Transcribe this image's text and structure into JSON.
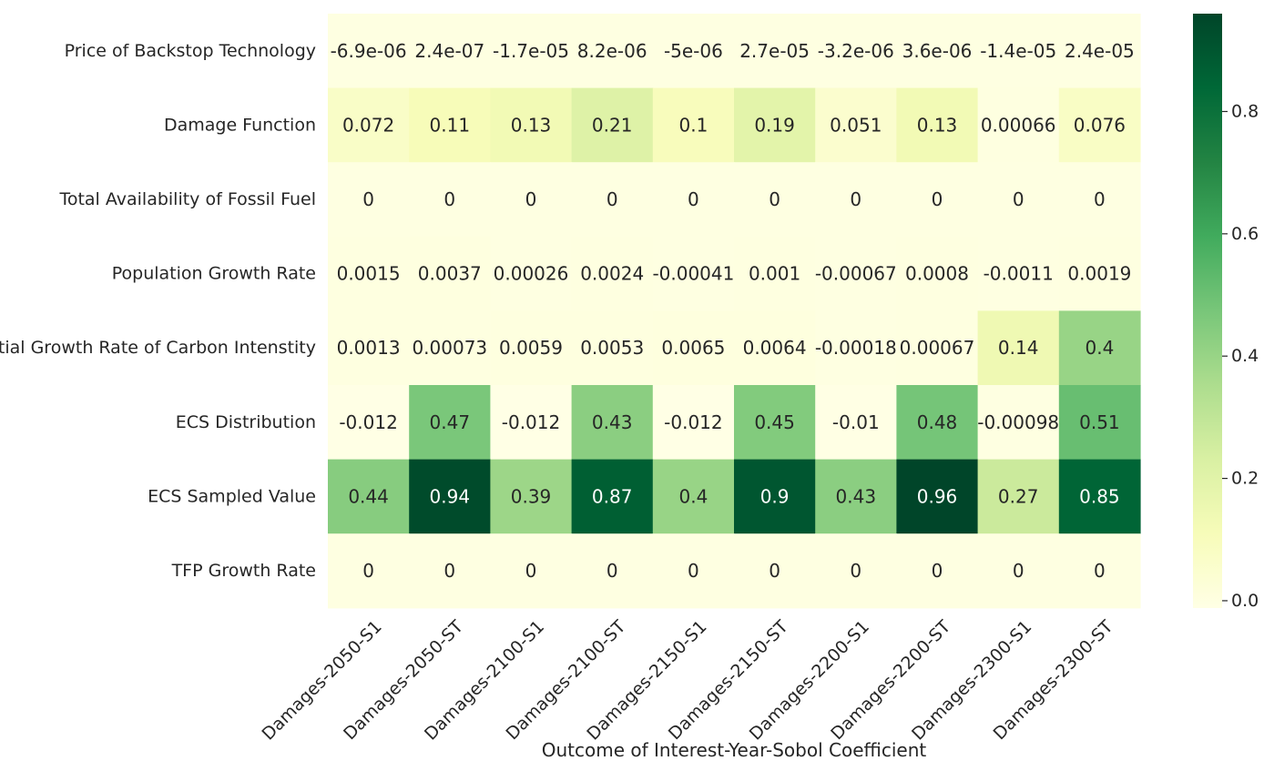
{
  "chart_data": {
    "type": "heatmap",
    "xlabel": "Outcome of Interest-Year-Sobol Coefficient",
    "ylabel": "",
    "x_categories": [
      "Damages-2050-S1",
      "Damages-2050-ST",
      "Damages-2100-S1",
      "Damages-2100-ST",
      "Damages-2150-S1",
      "Damages-2150-ST",
      "Damages-2200-S1",
      "Damages-2200-ST",
      "Damages-2300-S1",
      "Damages-2300-ST"
    ],
    "y_categories": [
      "Price of Backstop Technology",
      "Damage Function",
      "Total Availability of Fossil Fuel",
      "Population Growth Rate",
      "Initial Growth Rate of Carbon Intenstity",
      "ECS Distribution",
      "ECS Sampled Value",
      "TFP Growth Rate"
    ],
    "values": [
      [
        -6.9e-06,
        2.4e-07,
        -1.7e-05,
        8.2e-06,
        -5e-06,
        2.7e-05,
        -3.2e-06,
        3.6e-06,
        -1.4e-05,
        2.4e-05
      ],
      [
        0.072,
        0.11,
        0.13,
        0.21,
        0.1,
        0.19,
        0.051,
        0.13,
        0.00066,
        0.076
      ],
      [
        0,
        0,
        0,
        0,
        0,
        0,
        0,
        0,
        0,
        0
      ],
      [
        0.0015,
        0.0037,
        0.00026,
        0.0024,
        -0.00041,
        0.001,
        -0.00067,
        0.0008,
        -0.0011,
        0.0019
      ],
      [
        0.0013,
        0.00073,
        0.0059,
        0.0053,
        0.0065,
        0.0064,
        -0.00018,
        0.00067,
        0.14,
        0.4
      ],
      [
        -0.012,
        0.47,
        -0.012,
        0.43,
        -0.012,
        0.45,
        -0.01,
        0.48,
        -0.00098,
        0.51
      ],
      [
        0.44,
        0.94,
        0.39,
        0.87,
        0.4,
        0.9,
        0.43,
        0.96,
        0.27,
        0.85
      ],
      [
        0,
        0,
        0,
        0,
        0,
        0,
        0,
        0,
        0,
        0
      ]
    ],
    "annotations": [
      [
        "-6.9e-06",
        "2.4e-07",
        "-1.7e-05",
        "8.2e-06",
        "-5e-06",
        "2.7e-05",
        "-3.2e-06",
        "3.6e-06",
        "-1.4e-05",
        "2.4e-05"
      ],
      [
        "0.072",
        "0.11",
        "0.13",
        "0.21",
        "0.1",
        "0.19",
        "0.051",
        "0.13",
        "0.00066",
        "0.076"
      ],
      [
        "0",
        "0",
        "0",
        "0",
        "0",
        "0",
        "0",
        "0",
        "0",
        "0"
      ],
      [
        "0.0015",
        "0.0037",
        "0.00026",
        "0.0024",
        "-0.00041",
        "0.001",
        "-0.00067",
        "0.0008",
        "-0.0011",
        "0.0019"
      ],
      [
        "0.0013",
        "0.00073",
        "0.0059",
        "0.0053",
        "0.0065",
        "0.0064",
        "-0.00018",
        "0.00067",
        "0.14",
        "0.4"
      ],
      [
        "-0.012",
        "0.47",
        "-0.012",
        "0.43",
        "-0.012",
        "0.45",
        "-0.01",
        "0.48",
        "-0.00098",
        "0.51"
      ],
      [
        "0.44",
        "0.94",
        "0.39",
        "0.87",
        "0.4",
        "0.9",
        "0.43",
        "0.96",
        "0.27",
        "0.85"
      ],
      [
        "0",
        "0",
        "0",
        "0",
        "0",
        "0",
        "0",
        "0",
        "0",
        "0"
      ]
    ],
    "colorbar": {
      "colormap": "YlGn",
      "vmin": -0.012,
      "vmax": 0.96,
      "ticks": [
        0.0,
        0.2,
        0.4,
        0.6,
        0.8
      ],
      "tick_labels": [
        "0.0",
        "0.2",
        "0.4",
        "0.6",
        "0.8"
      ],
      "placement": "right"
    },
    "colormap_stops": [
      "#ffffe5",
      "#f7fcb9",
      "#d9f0a3",
      "#addd8e",
      "#78c679",
      "#41ab5d",
      "#238443",
      "#006837",
      "#004529"
    ],
    "annotation_dark_text_color": "#262626",
    "annotation_light_text_color": "#ffffff",
    "grid": false
  }
}
